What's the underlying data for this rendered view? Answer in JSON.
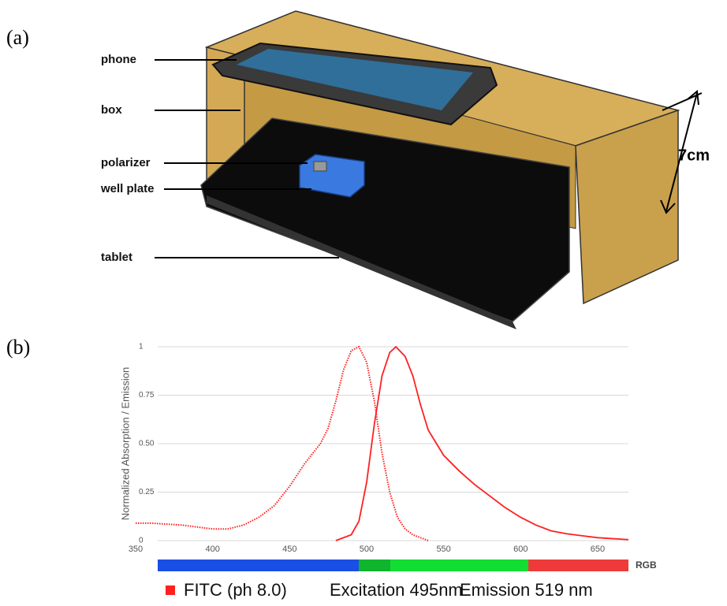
{
  "figure": {
    "panel_a": {
      "label": "(a)",
      "parts": [
        "phone",
        "box",
        "polarizer",
        "well plate",
        "tablet"
      ],
      "height_label": "7cm"
    },
    "panel_b": {
      "label": "(b)"
    }
  },
  "chart_data": {
    "type": "line",
    "y_label": "Normalized Absorption / Emission",
    "xlim": [
      350,
      670
    ],
    "xticks": [
      350,
      400,
      450,
      500,
      550,
      600,
      650
    ],
    "ylim": [
      0,
      1
    ],
    "yticks": [
      0,
      0.25,
      {
        "value": 0.5,
        "label": "0.50"
      },
      0.75,
      1
    ],
    "grid": true,
    "band_label": "RGB",
    "legend_prefix": "FITC  (ph 8.0)",
    "series": [
      {
        "name": "Excitation 495nm",
        "color": "#ff2020",
        "style": "dotted",
        "x": [
          350,
          360,
          370,
          380,
          390,
          400,
          410,
          420,
          430,
          440,
          450,
          460,
          470,
          475,
          480,
          485,
          490,
          495,
          500,
          505,
          510,
          515,
          520,
          525,
          530,
          540
        ],
        "values": [
          0.09,
          0.09,
          0.085,
          0.08,
          0.07,
          0.06,
          0.06,
          0.08,
          0.12,
          0.18,
          0.28,
          0.4,
          0.5,
          0.58,
          0.72,
          0.88,
          0.98,
          1.0,
          0.92,
          0.72,
          0.45,
          0.25,
          0.12,
          0.06,
          0.03,
          0.0
        ]
      },
      {
        "name": "Emission 519 nm",
        "color": "#ff2020",
        "style": "solid",
        "x": [
          480,
          490,
          495,
          500,
          505,
          510,
          515,
          519,
          525,
          530,
          535,
          540,
          550,
          560,
          570,
          580,
          590,
          600,
          610,
          620,
          630,
          640,
          650,
          660,
          670
        ],
        "values": [
          0.0,
          0.03,
          0.1,
          0.3,
          0.6,
          0.85,
          0.97,
          1.0,
          0.95,
          0.85,
          0.7,
          0.57,
          0.44,
          0.36,
          0.29,
          0.23,
          0.17,
          0.12,
          0.08,
          0.05,
          0.035,
          0.025,
          0.015,
          0.01,
          0.005
        ]
      }
    ]
  }
}
